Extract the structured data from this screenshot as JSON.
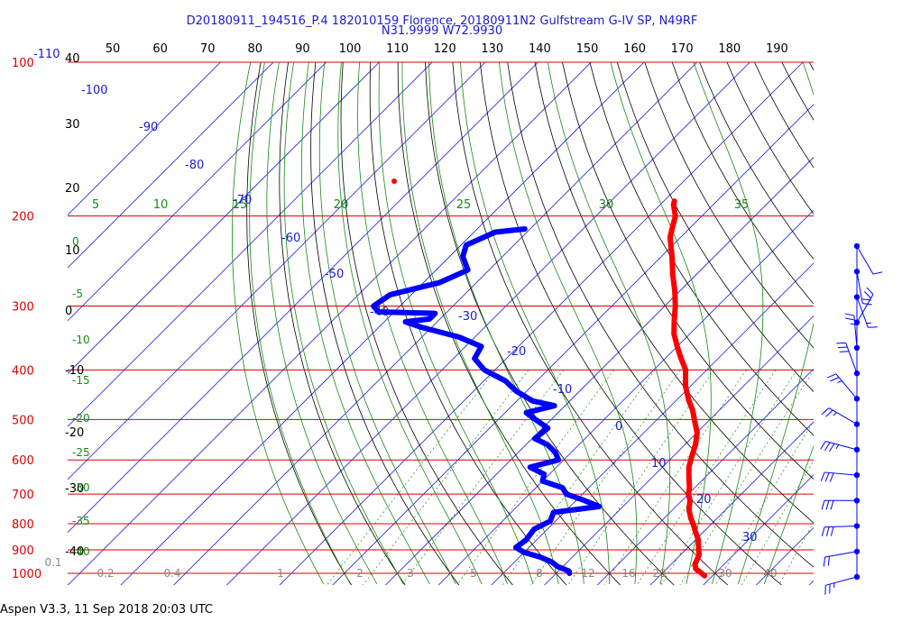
{
  "header": {
    "line1": "D20180911_194516_P.4 182010159 Florence, 20180911N2 Gulfstream G-IV SP, N49RF",
    "line2": "N31.9999 W72.9930"
  },
  "footer": {
    "text": "Aspen V3.3, 11 Sep 2018  20:03 UTC"
  },
  "colors": {
    "isobar": "#dd0000",
    "isotherm": "#1a1ad6",
    "dry_adiabat": "#000000",
    "mixing_ratio_and_moist": "#138a13",
    "temperature_trace": "#ff0000",
    "dewpoint_trace": "#0000ff",
    "wind_barb": "#0000ff"
  },
  "chart_data": {
    "type": "skew-t",
    "pressure_axis_labels": [
      "100",
      "200",
      "300",
      "400",
      "500",
      "600",
      "700",
      "800",
      "900",
      "1000"
    ],
    "pressure_axis_top_extra": "-110",
    "altitude_axis_labels": [
      "40",
      "30",
      "20",
      "10",
      "0",
      "-10",
      "-20",
      "-30",
      "-40"
    ],
    "top_axis_labels": [
      "50",
      "60",
      "70",
      "80",
      "90",
      "100",
      "110",
      "120",
      "130",
      "140",
      "150",
      "160",
      "170",
      "180",
      "190"
    ],
    "isotherm_labels": [
      "-100",
      "-90",
      "-80",
      "-70",
      "-60",
      "-50",
      "-40",
      "-30",
      "-20",
      "-10",
      "0",
      "10",
      "20",
      "30"
    ],
    "theta_e_labels": [
      "5",
      "10",
      "15",
      "20",
      "25",
      "30",
      "35"
    ],
    "left_green_labels": [
      "0",
      "-5",
      "-10",
      "-15",
      "-20",
      "-25",
      "-30",
      "-35",
      "-40"
    ],
    "mixing_ratio_labels": [
      "0.1",
      "0.2",
      "0.4",
      "1",
      "2",
      "3",
      "5",
      "8",
      "12",
      "16",
      "20",
      "30",
      "40"
    ],
    "temperature_profile": [
      [
        187,
        -48.0
      ],
      [
        190,
        -47.5
      ],
      [
        200,
        -45.0
      ],
      [
        210,
        -43.5
      ],
      [
        220,
        -42.0
      ],
      [
        240,
        -38.0
      ],
      [
        260,
        -34.5
      ],
      [
        280,
        -31.0
      ],
      [
        300,
        -28.0
      ],
      [
        320,
        -25.5
      ],
      [
        340,
        -23.0
      ],
      [
        360,
        -20.0
      ],
      [
        380,
        -17.0
      ],
      [
        400,
        -14.0
      ],
      [
        430,
        -11.0
      ],
      [
        460,
        -7.5
      ],
      [
        480,
        -5.0
      ],
      [
        500,
        -3.0
      ],
      [
        530,
        0.0
      ],
      [
        560,
        2.0
      ],
      [
        580,
        3.0
      ],
      [
        600,
        4.0
      ],
      [
        620,
        5.0
      ],
      [
        650,
        7.0
      ],
      [
        680,
        9.0
      ],
      [
        700,
        10.0
      ],
      [
        720,
        11.5
      ],
      [
        750,
        13.0
      ],
      [
        780,
        15.0
      ],
      [
        800,
        16.5
      ],
      [
        830,
        18.5
      ],
      [
        860,
        20.5
      ],
      [
        880,
        21.5
      ],
      [
        900,
        22.5
      ],
      [
        920,
        23.5
      ],
      [
        940,
        24.0
      ],
      [
        960,
        24.5
      ],
      [
        980,
        25.5
      ],
      [
        1000,
        27.5
      ],
      [
        1011,
        28.5
      ]
    ],
    "dewpoint_profile": [
      [
        212,
        -71.0
      ],
      [
        215,
        -76.0
      ],
      [
        228,
        -79.0
      ],
      [
        240,
        -77.5
      ],
      [
        255,
        -74.0
      ],
      [
        270,
        -77.0
      ],
      [
        285,
        -84.0
      ],
      [
        300,
        -85.0
      ],
      [
        308,
        -83.0
      ],
      [
        310,
        -72.0
      ],
      [
        318,
        -72.0
      ],
      [
        322,
        -76.0
      ],
      [
        330,
        -72.0
      ],
      [
        345,
        -63.0
      ],
      [
        360,
        -57.0
      ],
      [
        380,
        -56.0
      ],
      [
        400,
        -52.0
      ],
      [
        420,
        -46.0
      ],
      [
        440,
        -42.0
      ],
      [
        460,
        -37.0
      ],
      [
        470,
        -32.0
      ],
      [
        485,
        -36.0
      ],
      [
        500,
        -33.0
      ],
      [
        520,
        -29.0
      ],
      [
        545,
        -29.5
      ],
      [
        560,
        -26.0
      ],
      [
        580,
        -23.0
      ],
      [
        600,
        -21.0
      ],
      [
        620,
        -25.0
      ],
      [
        640,
        -21.0
      ],
      [
        660,
        -20.0
      ],
      [
        680,
        -15.0
      ],
      [
        700,
        -13.0
      ],
      [
        720,
        -8.5
      ],
      [
        740,
        -4.5
      ],
      [
        760,
        -12.0
      ],
      [
        790,
        -11.0
      ],
      [
        820,
        -12.5
      ],
      [
        860,
        -12.0
      ],
      [
        890,
        -12.5
      ],
      [
        910,
        -10.0
      ],
      [
        930,
        -6.0
      ],
      [
        950,
        -3.0
      ],
      [
        970,
        -1.0
      ],
      [
        990,
        2.0
      ],
      [
        1000,
        2.5
      ]
    ],
    "wind_profile": [
      {
        "p": 240,
        "speed_kt": 10,
        "dir_deg": 330
      },
      {
        "p": 265,
        "speed_kt": 20,
        "dir_deg": 350
      },
      {
        "p": 295,
        "speed_kt": 15,
        "dir_deg": 340
      },
      {
        "p": 330,
        "speed_kt": 20,
        "dir_deg": 210
      },
      {
        "p": 370,
        "speed_kt": 25,
        "dir_deg": 175
      },
      {
        "p": 420,
        "speed_kt": 30,
        "dir_deg": 160
      },
      {
        "p": 480,
        "speed_kt": 25,
        "dir_deg": 140
      },
      {
        "p": 550,
        "speed_kt": 25,
        "dir_deg": 120
      },
      {
        "p": 630,
        "speed_kt": 35,
        "dir_deg": 105
      },
      {
        "p": 720,
        "speed_kt": 30,
        "dir_deg": 95
      },
      {
        "p": 810,
        "speed_kt": 30,
        "dir_deg": 90
      },
      {
        "p": 900,
        "speed_kt": 30,
        "dir_deg": 88
      },
      {
        "p": 960,
        "speed_kt": 20,
        "dir_deg": 80
      },
      {
        "p": 1000,
        "speed_kt": 25,
        "dir_deg": 75
      }
    ]
  }
}
